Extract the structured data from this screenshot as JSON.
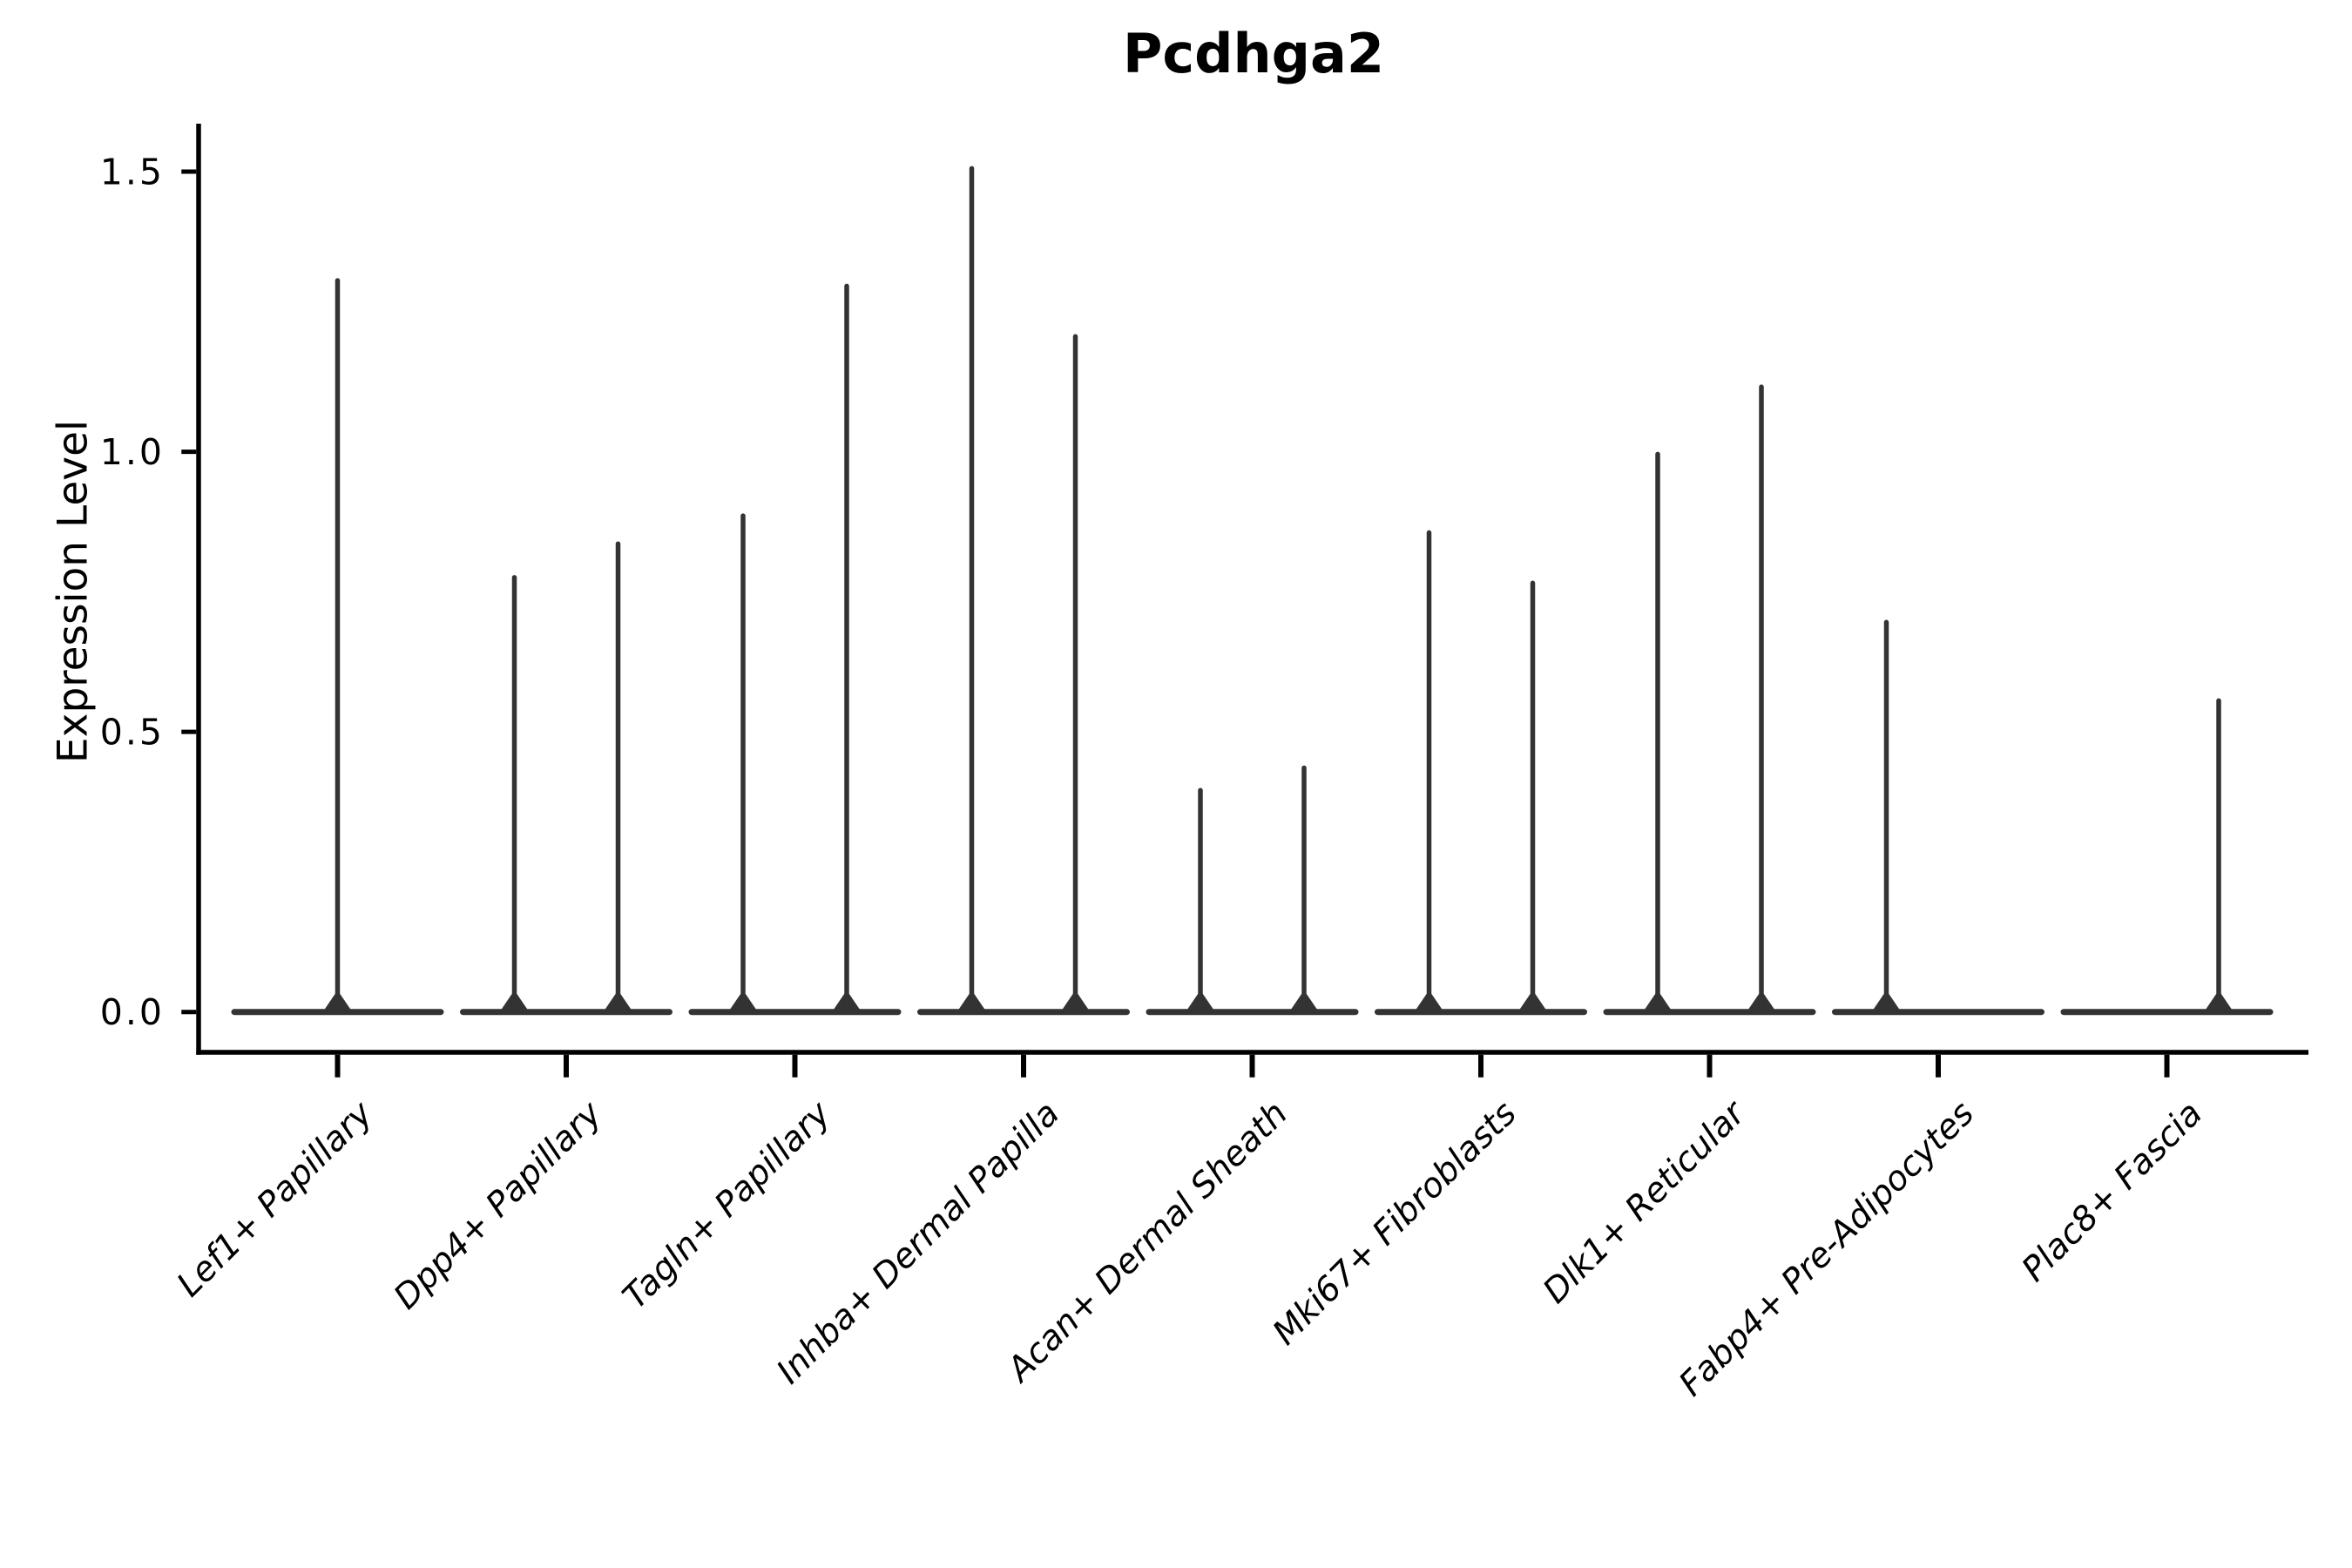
{
  "chart_data": {
    "type": "violin",
    "title": "Pcdhga2",
    "ylabel": "Expression Level",
    "xlabel": "",
    "yticks": [
      0.0,
      0.5,
      1.0,
      1.5
    ],
    "ytick_labels": [
      "0.0",
      "0.5",
      "1.0",
      "1.5"
    ],
    "ylim": [
      -0.072,
      1.585
    ],
    "grid": false,
    "legend": "none",
    "background_color": "#ffffff",
    "violin_color": "#333333",
    "axis_color": "#000000",
    "categories": [
      "Lef1+ Papillary",
      "Dpp4+ Papillary",
      "Tagln+ Papillary",
      "Inhba+ Dermal Papilla",
      "Acan+ Dermal Sheath",
      "Mki67+ Fibroblasts",
      "Dlk1+ Reticular",
      "Fabp4+ Pre-Adipocytes",
      "Plac8+ Fascia"
    ],
    "violins": [
      {
        "category": "Lef1+ Papillary",
        "glyphs": [
          {
            "position": "center",
            "peak": 1.31
          }
        ]
      },
      {
        "category": "Dpp4+ Papillary",
        "glyphs": [
          {
            "position": "left",
            "peak": 0.78
          },
          {
            "position": "right",
            "peak": 0.84
          }
        ]
      },
      {
        "category": "Tagln+ Papillary",
        "glyphs": [
          {
            "position": "left",
            "peak": 0.89
          },
          {
            "position": "right",
            "peak": 1.3
          }
        ]
      },
      {
        "category": "Inhba+ Dermal Papilla",
        "glyphs": [
          {
            "position": "left",
            "peak": 1.51
          },
          {
            "position": "right",
            "peak": 1.21
          }
        ]
      },
      {
        "category": "Acan+ Dermal Sheath",
        "glyphs": [
          {
            "position": "left",
            "peak": 0.4
          },
          {
            "position": "right",
            "peak": 0.44
          }
        ]
      },
      {
        "category": "Mki67+ Fibroblasts",
        "glyphs": [
          {
            "position": "left",
            "peak": 0.86
          },
          {
            "position": "right",
            "peak": 0.77
          }
        ]
      },
      {
        "category": "Dlk1+ Reticular",
        "glyphs": [
          {
            "position": "left",
            "peak": 1.0
          },
          {
            "position": "right",
            "peak": 1.12
          }
        ]
      },
      {
        "category": "Fabp4+ Pre-Adipocytes",
        "glyphs": [
          {
            "position": "left",
            "peak": 0.7
          },
          {
            "position": "right",
            "peak": 0.0
          }
        ]
      },
      {
        "category": "Plac8+ Fascia",
        "glyphs": [
          {
            "position": "left",
            "peak": 0.0
          },
          {
            "position": "right",
            "peak": 0.56
          }
        ]
      }
    ],
    "note": "Each category shows stacked-at-zero violin shapes: a wide flat base at expression 0 with a thin density spike rising to the listed peak expression value. Peaks of 0.0 are flat (no spike)."
  }
}
